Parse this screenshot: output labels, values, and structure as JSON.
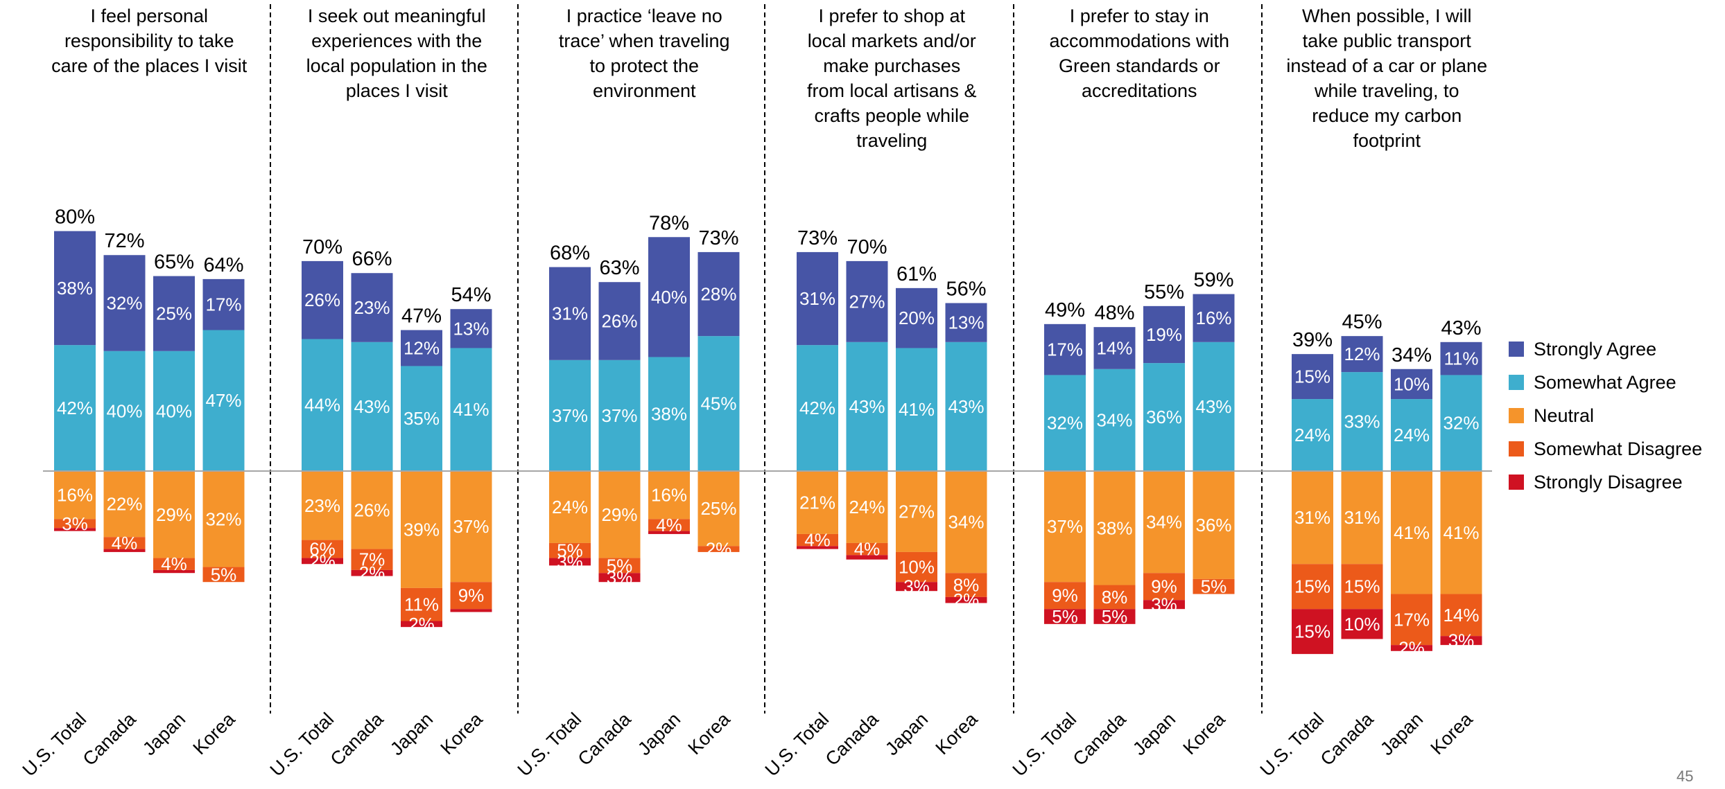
{
  "page_number": "45",
  "legend": [
    {
      "label": "Strongly Agree",
      "color": "#4755A6"
    },
    {
      "label": "Somewhat Agree",
      "color": "#3EAECE"
    },
    {
      "label": "Neutral",
      "color": "#F5942B"
    },
    {
      "label": "Somewhat Disagree",
      "color": "#EC5A1A"
    },
    {
      "label": "Strongly Disagree",
      "color": "#CF1222"
    }
  ],
  "chart_data": {
    "type": "bar",
    "stacked": "diverging",
    "categories": [
      "U.S. Total",
      "Canada",
      "Japan",
      "Korea"
    ],
    "value_unit": "%",
    "colors": {
      "strongly_agree": "#4755A6",
      "somewhat_agree": "#3EAECE",
      "neutral": "#F5942B",
      "somewhat_disagree": "#EC5A1A",
      "strongly_disagree": "#CF1222"
    },
    "panels": [
      {
        "title": "I feel personal responsibility to take care of the places I visit",
        "title_lines": [
          "I feel personal",
          "responsibility to take",
          "care of the places I visit"
        ],
        "bars": [
          {
            "total": 80,
            "strongly_agree": 38,
            "somewhat_agree": 42,
            "neutral": 16,
            "somewhat_disagree": 3,
            "strongly_disagree": 1
          },
          {
            "total": 72,
            "strongly_agree": 32,
            "somewhat_agree": 40,
            "neutral": 22,
            "somewhat_disagree": 4,
            "strongly_disagree": 1
          },
          {
            "total": 65,
            "strongly_agree": 25,
            "somewhat_agree": 40,
            "neutral": 29,
            "somewhat_disagree": 4,
            "strongly_disagree": 1
          },
          {
            "total": 64,
            "strongly_agree": 17,
            "somewhat_agree": 47,
            "neutral": 32,
            "somewhat_disagree": 5,
            "strongly_disagree": 0
          }
        ]
      },
      {
        "title": "I seek out meaningful experiences with the local population in the places I visit",
        "title_lines": [
          "I seek out meaningful",
          "experiences with the",
          "local population in the",
          "places I visit"
        ],
        "bars": [
          {
            "total": 70,
            "strongly_agree": 26,
            "somewhat_agree": 44,
            "neutral": 23,
            "somewhat_disagree": 6,
            "strongly_disagree": 2
          },
          {
            "total": 66,
            "strongly_agree": 23,
            "somewhat_agree": 43,
            "neutral": 26,
            "somewhat_disagree": 7,
            "strongly_disagree": 2
          },
          {
            "total": 47,
            "strongly_agree": 12,
            "somewhat_agree": 35,
            "neutral": 39,
            "somewhat_disagree": 11,
            "strongly_disagree": 2
          },
          {
            "total": 54,
            "strongly_agree": 13,
            "somewhat_agree": 41,
            "neutral": 37,
            "somewhat_disagree": 9,
            "strongly_disagree": 1
          }
        ]
      },
      {
        "title": "I practice ‘leave no trace’ when traveling to protect the environment",
        "title_lines": [
          "I practice ‘leave no",
          "trace’ when traveling",
          "to protect the",
          "environment"
        ],
        "bars": [
          {
            "total": 68,
            "strongly_agree": 31,
            "somewhat_agree": 37,
            "neutral": 24,
            "somewhat_disagree": 5,
            "strongly_disagree": 2.5
          },
          {
            "total": 63,
            "strongly_agree": 26,
            "somewhat_agree": 37,
            "neutral": 29,
            "somewhat_disagree": 5,
            "strongly_disagree": 3
          },
          {
            "total": 78,
            "strongly_agree": 40,
            "somewhat_agree": 38,
            "neutral": 16,
            "somewhat_disagree": 4,
            "strongly_disagree": 1
          },
          {
            "total": 73,
            "strongly_agree": 28,
            "somewhat_agree": 45,
            "neutral": 25,
            "somewhat_disagree": 2,
            "strongly_disagree": 0
          }
        ]
      },
      {
        "title": "I prefer to shop at local markets and/or make purchases from local artisans & crafts people while traveling",
        "title_lines": [
          "I prefer to shop at",
          "local markets and/or",
          "make purchases",
          "from local artisans &",
          "crafts people while",
          "traveling"
        ],
        "bars": [
          {
            "total": 73,
            "strongly_agree": 31,
            "somewhat_agree": 42,
            "neutral": 21,
            "somewhat_disagree": 4,
            "strongly_disagree": 1
          },
          {
            "total": 70,
            "strongly_agree": 27,
            "somewhat_agree": 43,
            "neutral": 24,
            "somewhat_disagree": 4,
            "strongly_disagree": 1.5
          },
          {
            "total": 61,
            "strongly_agree": 20,
            "somewhat_agree": 41,
            "neutral": 27,
            "somewhat_disagree": 10,
            "strongly_disagree": 3
          },
          {
            "total": 56,
            "strongly_agree": 13,
            "somewhat_agree": 43,
            "neutral": 34,
            "somewhat_disagree": 8,
            "strongly_disagree": 2
          }
        ]
      },
      {
        "title": "I prefer to stay in accommodations with Green standards or accreditations",
        "title_lines": [
          "I prefer to stay in",
          "accommodations with",
          "Green standards or",
          "accreditations"
        ],
        "bars": [
          {
            "total": 49,
            "strongly_agree": 17,
            "somewhat_agree": 32,
            "neutral": 37,
            "somewhat_disagree": 9,
            "strongly_disagree": 5
          },
          {
            "total": 48,
            "strongly_agree": 14,
            "somewhat_agree": 34,
            "neutral": 38,
            "somewhat_disagree": 8,
            "strongly_disagree": 5
          },
          {
            "total": 55,
            "strongly_agree": 19,
            "somewhat_agree": 36,
            "neutral": 34,
            "somewhat_disagree": 9,
            "strongly_disagree": 3
          },
          {
            "total": 59,
            "strongly_agree": 16,
            "somewhat_agree": 43,
            "neutral": 36,
            "somewhat_disagree": 5,
            "strongly_disagree": 0
          }
        ]
      },
      {
        "title": "When possible, I will take public transport instead of a car or plane while traveling, to reduce my carbon footprint",
        "title_lines": [
          "When possible, I will",
          "take public transport",
          "instead of a car or plane",
          "while traveling, to",
          "reduce my carbon",
          "footprint"
        ],
        "bars": [
          {
            "total": 39,
            "strongly_agree": 15,
            "somewhat_agree": 24,
            "neutral": 31,
            "somewhat_disagree": 15,
            "strongly_disagree": 15
          },
          {
            "total": 45,
            "strongly_agree": 12,
            "somewhat_agree": 33,
            "neutral": 31,
            "somewhat_disagree": 15,
            "strongly_disagree": 10
          },
          {
            "total": 34,
            "strongly_agree": 10,
            "somewhat_agree": 24,
            "neutral": 41,
            "somewhat_disagree": 17,
            "strongly_disagree": 2
          },
          {
            "total": 43,
            "strongly_agree": 11,
            "somewhat_agree": 32,
            "neutral": 41,
            "somewhat_disagree": 14,
            "strongly_disagree": 3
          }
        ]
      }
    ],
    "labels_hidden_below_percent": 2
  }
}
